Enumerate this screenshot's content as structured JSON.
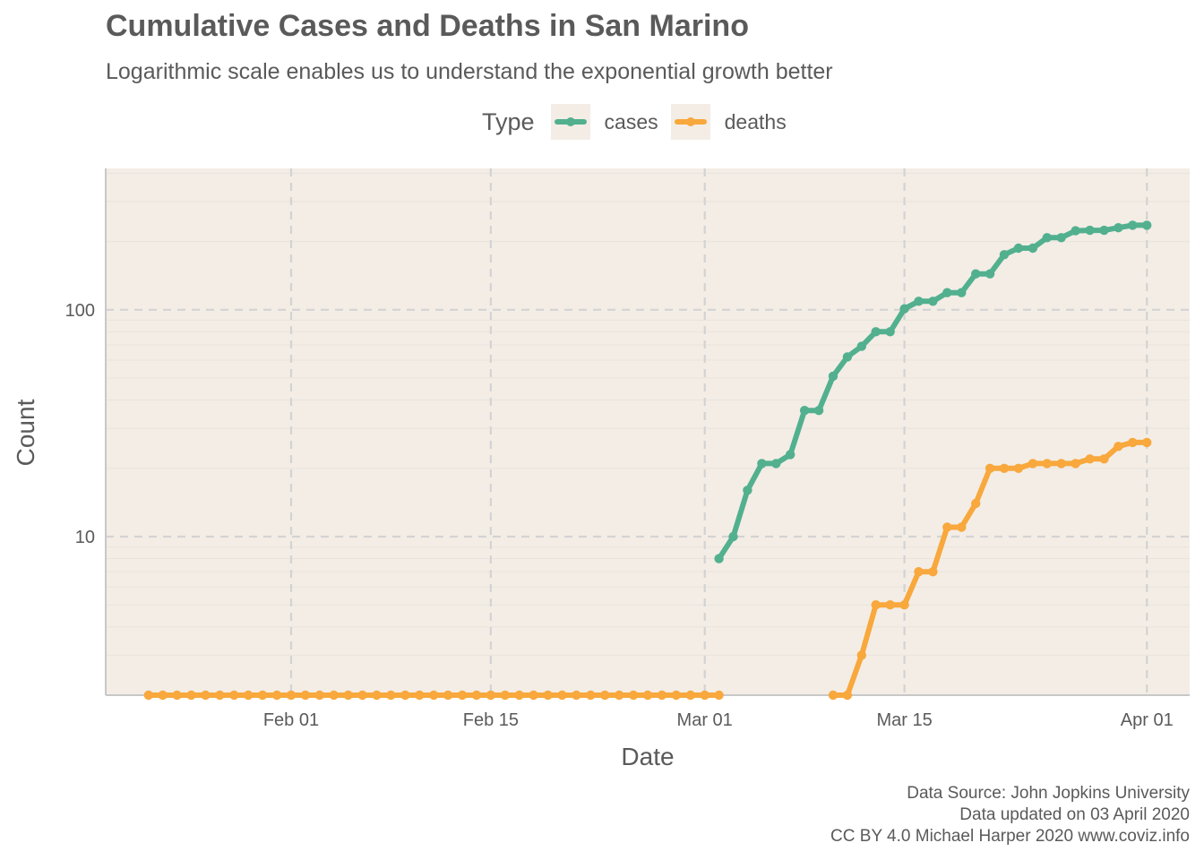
{
  "chart_data": {
    "type": "line",
    "title": "Cumulative Cases and Deaths in San Marino",
    "subtitle": "Logarithmic scale enables us to understand the exponential growth better",
    "xlabel": "Date",
    "ylabel": "Count",
    "y_scale": "log10",
    "y_ticks": [
      10,
      100
    ],
    "y_tick_labels": [
      "10",
      "100"
    ],
    "x_ticks": [
      "2020-02-01",
      "2020-02-15",
      "2020-03-01",
      "2020-03-15",
      "2020-04-01"
    ],
    "x_tick_labels": [
      "Feb 01",
      "Feb 15",
      "Mar 01",
      "Mar 15",
      "Apr 01"
    ],
    "xlim": [
      "2020-01-19",
      "2020-04-04"
    ],
    "ylim": [
      2,
      420
    ],
    "grid": true,
    "legend": {
      "title": "Type",
      "position": "top",
      "entries": [
        "cases",
        "deaths"
      ]
    },
    "series": [
      {
        "name": "cases",
        "color": "#52b08f",
        "x": [
          "2020-03-02",
          "2020-03-03",
          "2020-03-04",
          "2020-03-05",
          "2020-03-06",
          "2020-03-07",
          "2020-03-08",
          "2020-03-09",
          "2020-03-10",
          "2020-03-11",
          "2020-03-12",
          "2020-03-13",
          "2020-03-14",
          "2020-03-15",
          "2020-03-16",
          "2020-03-17",
          "2020-03-18",
          "2020-03-19",
          "2020-03-20",
          "2020-03-21",
          "2020-03-22",
          "2020-03-23",
          "2020-03-24",
          "2020-03-25",
          "2020-03-26",
          "2020-03-27",
          "2020-03-28",
          "2020-03-29",
          "2020-03-30",
          "2020-03-31",
          "2020-04-01"
        ],
        "values": [
          8,
          10,
          16,
          21,
          21,
          23,
          36,
          36,
          51,
          62,
          69,
          80,
          80,
          101,
          109,
          109,
          119,
          119,
          144,
          144,
          175,
          187,
          187,
          208,
          208,
          223,
          224,
          224,
          230,
          236,
          236
        ]
      },
      {
        "name": "deaths",
        "color": "#f8a83c",
        "x": [
          "2020-01-22",
          "2020-01-23",
          "2020-01-24",
          "2020-01-25",
          "2020-01-26",
          "2020-01-27",
          "2020-01-28",
          "2020-01-29",
          "2020-01-30",
          "2020-01-31",
          "2020-02-01",
          "2020-02-02",
          "2020-02-03",
          "2020-02-04",
          "2020-02-05",
          "2020-02-06",
          "2020-02-07",
          "2020-02-08",
          "2020-02-09",
          "2020-02-10",
          "2020-02-11",
          "2020-02-12",
          "2020-02-13",
          "2020-02-14",
          "2020-02-15",
          "2020-02-16",
          "2020-02-17",
          "2020-02-18",
          "2020-02-19",
          "2020-02-20",
          "2020-02-21",
          "2020-02-22",
          "2020-02-23",
          "2020-02-24",
          "2020-02-25",
          "2020-02-26",
          "2020-02-27",
          "2020-02-28",
          "2020-02-29",
          "2020-03-01",
          "2020-03-02",
          "2020-03-10",
          "2020-03-11",
          "2020-03-12",
          "2020-03-13",
          "2020-03-14",
          "2020-03-15",
          "2020-03-16",
          "2020-03-17",
          "2020-03-18",
          "2020-03-19",
          "2020-03-20",
          "2020-03-21",
          "2020-03-22",
          "2020-03-23",
          "2020-03-24",
          "2020-03-25",
          "2020-03-26",
          "2020-03-27",
          "2020-03-28",
          "2020-03-29",
          "2020-03-30",
          "2020-03-31",
          "2020-04-01"
        ],
        "values": [
          2,
          2,
          2,
          2,
          2,
          2,
          2,
          2,
          2,
          2,
          2,
          2,
          2,
          2,
          2,
          2,
          2,
          2,
          2,
          2,
          2,
          2,
          2,
          2,
          2,
          2,
          2,
          2,
          2,
          2,
          2,
          2,
          2,
          2,
          2,
          2,
          2,
          2,
          2,
          2,
          2,
          2,
          2,
          3,
          5,
          5,
          5,
          7,
          7,
          11,
          11,
          14,
          20,
          20,
          20,
          21,
          21,
          21,
          21,
          22,
          22,
          25,
          26,
          26
        ]
      }
    ]
  },
  "caption": {
    "line1": "Data Source: John Jopkins University",
    "line2": "Data updated on 03 April 2020",
    "line3": "CC BY 4.0 Michael Harper 2020 www.coviz.info"
  },
  "colors": {
    "panel_background": "#f3ede6",
    "grid_major": "#d3d3d3",
    "grid_minor": "#e9e3dc",
    "axis_line": "#c8c8c8"
  }
}
